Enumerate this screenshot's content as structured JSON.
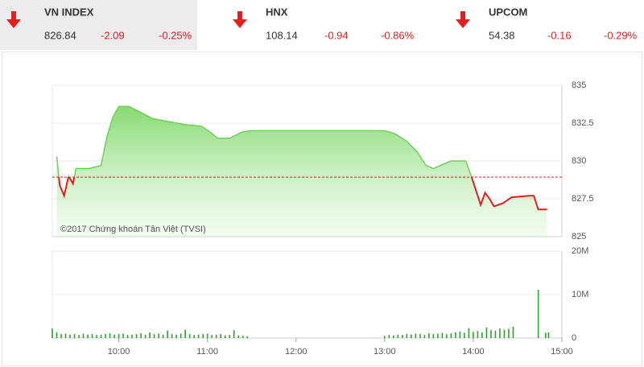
{
  "indices": [
    {
      "name": "VN INDEX",
      "value": 826.84,
      "change": -2.09,
      "percent": "-0.25%"
    },
    {
      "name": "HNX",
      "value": 108.14,
      "change": -0.94,
      "percent": "-0.86%"
    },
    {
      "name": "UPCOM",
      "value": 54.38,
      "change": -0.16,
      "percent": "-0.29%"
    }
  ],
  "chart_data": [
    {
      "type": "area",
      "watermark": "©2017 Chứng khoán Tân Việt (TVSI)",
      "x": [
        "9:18",
        "9:20",
        "9:23",
        "9:26",
        "9:29",
        "9:31",
        "9:40",
        "9:48",
        "9:52",
        "9:56",
        "10:00",
        "10:07",
        "10:15",
        "10:23",
        "10:34",
        "10:45",
        "10:56",
        "11:02",
        "11:07",
        "11:15",
        "11:23",
        "11:29",
        "13:00",
        "13:07",
        "13:15",
        "13:22",
        "13:28",
        "13:33",
        "13:40",
        "13:45",
        "13:55",
        "13:59",
        "14:02",
        "14:05",
        "14:08",
        "14:11",
        "14:14",
        "14:20",
        "14:26",
        "14:38",
        "14:41",
        "14:44",
        "14:50"
      ],
      "values": [
        830.3,
        828.4,
        827.7,
        829.0,
        828.5,
        829.5,
        829.5,
        829.7,
        831.6,
        832.9,
        833.6,
        833.6,
        833.2,
        832.8,
        832.6,
        832.4,
        832.3,
        831.9,
        831.5,
        831.5,
        831.9,
        832.0,
        832.0,
        831.8,
        831.3,
        830.6,
        829.7,
        829.5,
        829.8,
        830.0,
        830.0,
        828.9,
        828.0,
        827.1,
        827.9,
        827.5,
        827.0,
        827.2,
        827.6,
        827.7,
        827.7,
        826.8,
        826.8
      ],
      "reference_line": 828.93,
      "xlim": [
        "9:15",
        "15:00"
      ],
      "ylim": [
        825,
        835
      ],
      "yticks": [
        825,
        827.5,
        830,
        832.5,
        835
      ],
      "color": "#6fcf5a",
      "color_below": "#e21f1f",
      "grid": true
    },
    {
      "type": "bar",
      "x": [
        "9:15",
        "9:18",
        "9:21",
        "9:24",
        "9:27",
        "9:30",
        "9:33",
        "9:36",
        "9:39",
        "9:42",
        "9:45",
        "9:48",
        "9:51",
        "9:54",
        "9:57",
        "10:00",
        "10:03",
        "10:06",
        "10:09",
        "10:12",
        "10:15",
        "10:18",
        "10:21",
        "10:24",
        "10:27",
        "10:30",
        "10:33",
        "10:36",
        "10:39",
        "10:42",
        "10:45",
        "10:48",
        "10:51",
        "10:54",
        "10:57",
        "11:00",
        "11:03",
        "11:06",
        "11:09",
        "11:12",
        "11:15",
        "11:18",
        "11:21",
        "11:24",
        "11:27",
        "13:00",
        "13:03",
        "13:06",
        "13:09",
        "13:12",
        "13:15",
        "13:18",
        "13:21",
        "13:24",
        "13:27",
        "13:30",
        "13:33",
        "13:36",
        "13:39",
        "13:42",
        "13:45",
        "13:48",
        "13:51",
        "13:54",
        "13:57",
        "14:00",
        "14:03",
        "14:06",
        "14:09",
        "14:12",
        "14:15",
        "14:18",
        "14:21",
        "14:24",
        "14:27",
        "14:44",
        "14:49",
        "14:51"
      ],
      "values": [
        2200000,
        1300000,
        900000,
        1000000,
        800000,
        900000,
        700000,
        1000000,
        800000,
        900000,
        700000,
        800000,
        900000,
        1100000,
        800000,
        900000,
        1000000,
        700000,
        800000,
        900000,
        1100000,
        800000,
        1300000,
        900000,
        1000000,
        800000,
        1700000,
        900000,
        800000,
        1000000,
        1900000,
        900000,
        700000,
        800000,
        900000,
        1000000,
        700000,
        800000,
        900000,
        600000,
        700000,
        1800000,
        600000,
        500000,
        400000,
        500000,
        700000,
        600000,
        800000,
        700000,
        900000,
        800000,
        1000000,
        900000,
        700000,
        1100000,
        900000,
        1000000,
        1200000,
        900000,
        1100000,
        1300000,
        1500000,
        1200000,
        2300000,
        1400000,
        1600000,
        1300000,
        2400000,
        1800000,
        1700000,
        2200000,
        1900000,
        2100000,
        2600000,
        11100000,
        1200000,
        1300000
      ],
      "xlim": [
        "9:15",
        "15:00"
      ],
      "xticks": [
        "10:00",
        "11:00",
        "12:00",
        "13:00",
        "14:00",
        "15:00"
      ],
      "ylim": [
        0,
        20000000
      ],
      "yticks": [
        0,
        {
          "value": 10000000,
          "label": "10M"
        },
        {
          "value": 20000000,
          "label": "20M"
        }
      ],
      "color": "#2f9e2f",
      "grid": true
    }
  ]
}
